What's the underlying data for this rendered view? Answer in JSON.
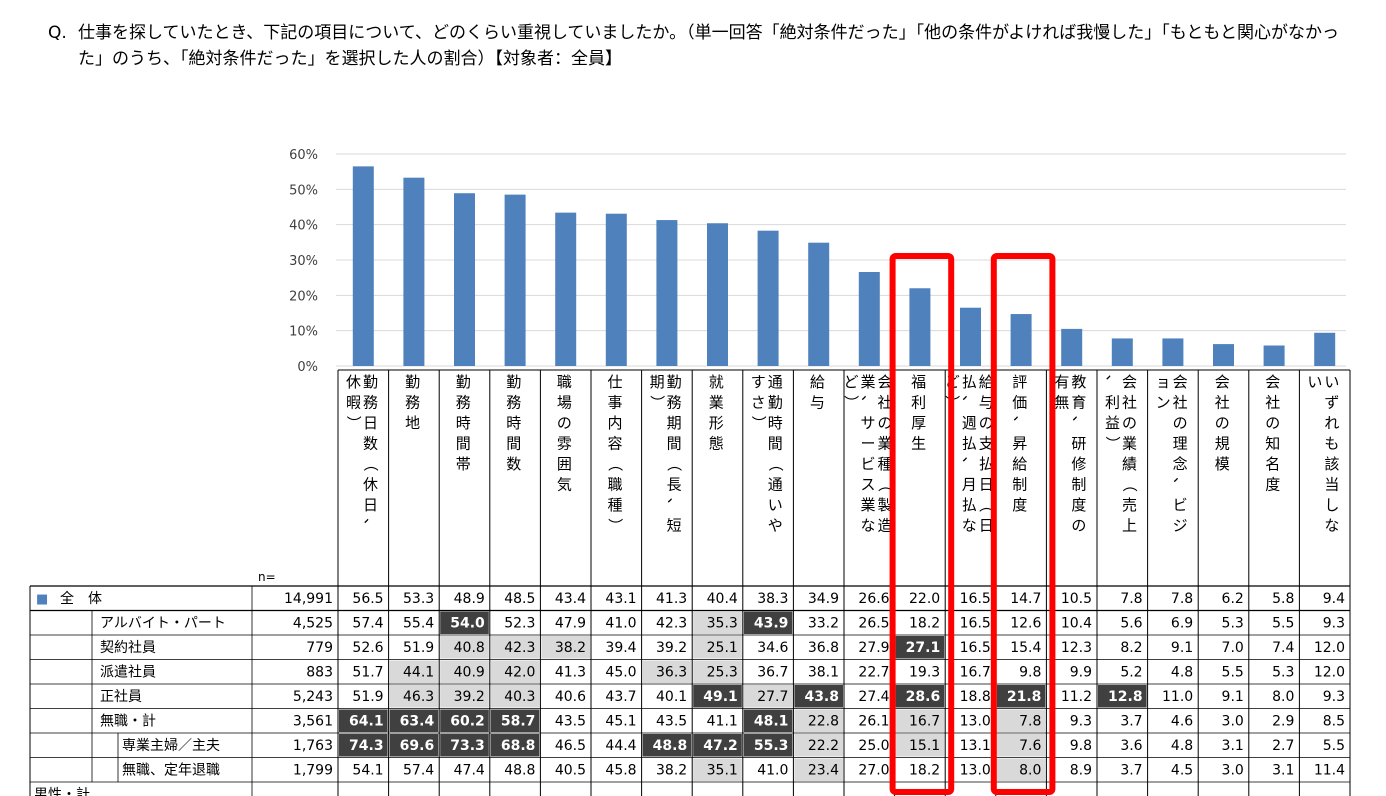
{
  "question": {
    "prefix": "Q.",
    "text": "仕事を探していたとき、下記の項目について、どのくらい重視していましたか。（単一回答「絶対条件だった」「他の条件がよければ我慢した」「もともと関心がなかった」のうち、「絶対条件だった」を選択した人の割合）【対象者：全員】"
  },
  "n_label": "n=",
  "highlight_color": "#ff0000",
  "chart_data": {
    "type": "bar",
    "y_ticks": [
      "60%",
      "50%",
      "40%",
      "30%",
      "20%",
      "10%",
      "0%"
    ],
    "ylim": [
      0,
      60
    ],
    "grid": true,
    "bar_color": "#4f81bd",
    "categories": [
      "勤務日数（休日、休暇）",
      "勤務地",
      "勤務時間帯",
      "勤務時間数",
      "職場の雰囲気",
      "仕事内容（職種）",
      "勤務期間（長、短期）",
      "就業形態",
      "通勤時間（通いやすさ）",
      "給与",
      "会社の業種（製造業、サービス業など）",
      "福利厚生",
      "給与の支払日（日払、週払、月払など）",
      "評価、昇給制度",
      "教育、研修制度の有無",
      "会社の業績（売上、利益）",
      "会社の理念、ビジョン",
      "会社の規模",
      "会社の知名度",
      "いずれも該当しない"
    ],
    "values": [
      56.5,
      53.3,
      48.9,
      48.5,
      43.4,
      43.1,
      41.3,
      40.4,
      38.3,
      34.9,
      26.6,
      22.0,
      16.5,
      14.7,
      10.5,
      7.8,
      7.8,
      6.2,
      5.8,
      9.4
    ],
    "highlighted_categories": [
      "福利厚生",
      "評価、昇給制度"
    ],
    "table": {
      "rows": [
        {
          "label": "全　体",
          "marker": "■",
          "n": "14,991",
          "values": [
            "56.5",
            "53.3",
            "48.9",
            "48.5",
            "43.4",
            "43.1",
            "41.3",
            "40.4",
            "38.3",
            "34.9",
            "26.6",
            "22.0",
            "16.5",
            "14.7",
            "10.5",
            "7.8",
            "7.8",
            "6.2",
            "5.8",
            "9.4"
          ]
        },
        {
          "label": "アルバイト・パート",
          "n": "4,525",
          "values": [
            "57.4",
            "55.4",
            "54.0",
            "52.3",
            "47.9",
            "41.0",
            "42.3",
            "35.3",
            "43.9",
            "33.2",
            "26.5",
            "18.2",
            "16.5",
            "12.6",
            "10.4",
            "5.6",
            "6.9",
            "5.3",
            "5.5",
            "9.3"
          ]
        },
        {
          "label": "契約社員",
          "n": "779",
          "values": [
            "52.6",
            "51.9",
            "40.8",
            "42.3",
            "38.2",
            "39.4",
            "39.2",
            "25.1",
            "34.6",
            "36.8",
            "27.9",
            "27.1",
            "16.5",
            "15.4",
            "12.3",
            "8.2",
            "9.1",
            "7.0",
            "7.4",
            "12.0"
          ]
        },
        {
          "label": "派遣社員",
          "n": "883",
          "values": [
            "51.7",
            "44.1",
            "40.9",
            "42.0",
            "41.3",
            "45.0",
            "36.3",
            "25.3",
            "36.7",
            "38.1",
            "22.7",
            "19.3",
            "16.7",
            "9.8",
            "9.9",
            "5.2",
            "4.8",
            "5.5",
            "5.3",
            "12.0"
          ]
        },
        {
          "label": "正社員",
          "n": "5,243",
          "values": [
            "51.9",
            "46.3",
            "39.2",
            "40.3",
            "40.6",
            "43.7",
            "40.1",
            "49.1",
            "27.7",
            "43.8",
            "27.4",
            "28.6",
            "18.8",
            "21.8",
            "11.2",
            "12.8",
            "11.0",
            "9.1",
            "8.0",
            "9.3"
          ]
        },
        {
          "label": "無職・計",
          "n": "3,561",
          "values": [
            "64.1",
            "63.4",
            "60.2",
            "58.7",
            "43.5",
            "45.1",
            "43.5",
            "41.1",
            "48.1",
            "22.8",
            "26.1",
            "16.7",
            "13.0",
            "7.8",
            "9.3",
            "3.7",
            "4.6",
            "3.0",
            "2.9",
            "8.5"
          ]
        },
        {
          "label": "専業主婦／主夫",
          "n": "1,763",
          "values": [
            "74.3",
            "69.6",
            "73.3",
            "68.8",
            "46.5",
            "44.4",
            "48.8",
            "47.2",
            "55.3",
            "22.2",
            "25.0",
            "15.1",
            "13.1",
            "7.6",
            "9.8",
            "3.6",
            "4.8",
            "3.1",
            "2.7",
            "5.5"
          ]
        },
        {
          "label": "無職、定年退職",
          "n": "1,799",
          "values": [
            "54.1",
            "57.4",
            "47.4",
            "48.8",
            "40.5",
            "45.8",
            "38.2",
            "35.1",
            "41.0",
            "23.4",
            "27.0",
            "18.2",
            "13.0",
            "8.0",
            "8.9",
            "3.7",
            "4.5",
            "3.0",
            "3.1",
            "11.4"
          ]
        },
        {
          "label": "男性・計",
          "n": "",
          "values": []
        }
      ]
    }
  }
}
